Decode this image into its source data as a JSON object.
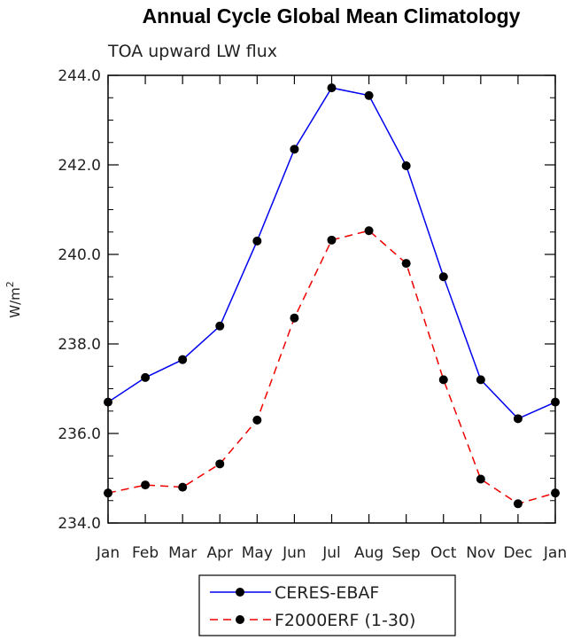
{
  "chart_data": {
    "type": "line",
    "title": "Annual Cycle Global Mean Climatology",
    "subtitle": "TOA upward LW flux",
    "xlabel": "",
    "ylabel": "W/m",
    "ylabel_superscript": "2",
    "categories": [
      "Jan",
      "Feb",
      "Mar",
      "Apr",
      "May",
      "Jun",
      "Jul",
      "Aug",
      "Sep",
      "Oct",
      "Nov",
      "Dec",
      "Jan"
    ],
    "ylim": [
      234.0,
      244.0
    ],
    "yticks": [
      "234.0",
      "236.0",
      "238.0",
      "240.0",
      "242.0",
      "244.0"
    ],
    "grid": false,
    "legend_position": "bottom-center",
    "series": [
      {
        "name": "CERES-EBAF",
        "color": "#0000ee",
        "dash": "solid",
        "values": [
          236.7,
          237.25,
          237.65,
          238.4,
          240.3,
          242.35,
          243.72,
          243.55,
          241.98,
          239.5,
          237.2,
          236.33,
          236.7
        ]
      },
      {
        "name": "F2000ERF (1-30)",
        "color": "#ee0000",
        "dash": "dashed",
        "values": [
          234.67,
          234.85,
          234.8,
          235.32,
          236.3,
          238.58,
          240.32,
          240.53,
          239.8,
          237.2,
          234.98,
          234.43,
          234.67
        ]
      }
    ]
  }
}
